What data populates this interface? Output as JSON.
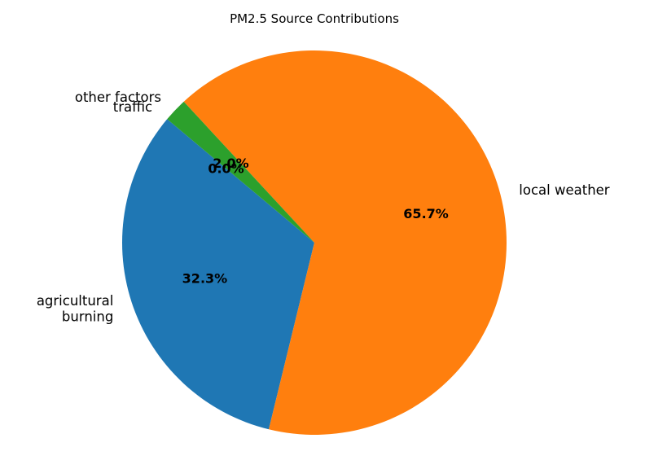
{
  "chart_data": {
    "type": "pie",
    "title": "PM2.5 Source Contributions",
    "slices": [
      {
        "label": "agricultural burning",
        "label_lines": [
          "agricultural",
          "burning"
        ],
        "value": 32.3,
        "pct_label": "32.3%",
        "color": "#1f77b4"
      },
      {
        "label": "local weather",
        "label_lines": [
          "local weather"
        ],
        "value": 65.7,
        "pct_label": "65.7%",
        "color": "#ff7f0e"
      },
      {
        "label": "other factors",
        "label_lines": [
          "other factors"
        ],
        "value": 2.0,
        "pct_label": "2.0%",
        "color": "#2ca02c"
      },
      {
        "label": "traffic",
        "label_lines": [
          "traffic"
        ],
        "value": 0.0,
        "pct_label": "0.0%",
        "color": "#d62728"
      }
    ],
    "start_angle_deg": 140,
    "direction": "counterclockwise",
    "legend": "none"
  }
}
